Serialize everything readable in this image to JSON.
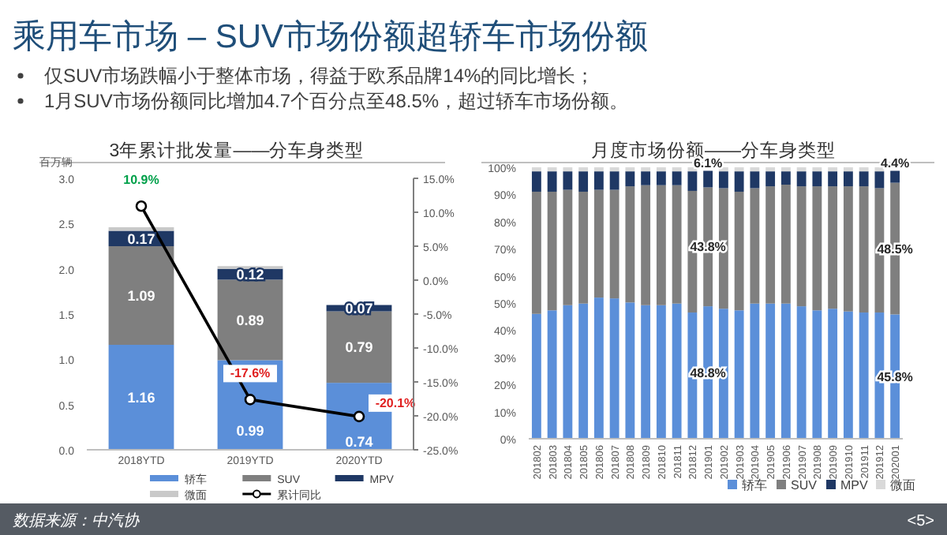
{
  "chart_data": [
    {
      "type": "other",
      "title": "乘用车市场 – SUV市场份额超轿车市场份额",
      "annotations": [
        "仅SUV市场跌幅小于整体市场，得益于欧系品牌14%的同比增长；",
        "1月SUV市场份额同比增加4.7个百分点至48.5%，超过轿车市场份额。",
        "数据来源：中汽协",
        "<5>"
      ]
    },
    {
      "type": "bar",
      "stacked": true,
      "title": "3年累计批发量——分车身类型",
      "ylabel": "百万辆",
      "categories": [
        "2018YTD",
        "2019YTD",
        "2020YTD"
      ],
      "ylim": [
        0,
        3
      ],
      "yticks": [
        {
          "value": 0,
          "label": "0.0"
        },
        {
          "value": 0.5,
          "label": "0.5"
        },
        {
          "value": 1,
          "label": "1.0"
        },
        {
          "value": 1.5,
          "label": "1.5"
        },
        {
          "value": 2,
          "label": "2.0"
        },
        {
          "value": 2.5,
          "label": "2.5"
        },
        {
          "value": 3,
          "label": "3.0"
        }
      ],
      "y2lim": [
        -25,
        15
      ],
      "y2ticks": [
        {
          "value": -25,
          "label": "-25.0%"
        },
        {
          "value": -20,
          "label": "-20.0%"
        },
        {
          "value": -15,
          "label": "-15.0%"
        },
        {
          "value": -10,
          "label": "-10.0%"
        },
        {
          "value": -5,
          "label": "-5.0%"
        },
        {
          "value": 0,
          "label": "0.0%"
        },
        {
          "value": 5,
          "label": "5.0%"
        },
        {
          "value": 10,
          "label": "10.0%"
        },
        {
          "value": 15,
          "label": "15.0%"
        }
      ],
      "legend": "bottom",
      "series": [
        {
          "name": "轿车",
          "color": "#5b8fd9",
          "values": [
            1.16,
            0.99,
            0.74
          ],
          "value_labels": [
            "1.16",
            "0.99",
            "0.74"
          ]
        },
        {
          "name": "SUV",
          "color": "#7f7f7f",
          "values": [
            1.09,
            0.89,
            0.79
          ],
          "value_labels": [
            "1.09",
            "0.89",
            "0.79"
          ]
        },
        {
          "name": "MPV",
          "color": "#1f3864",
          "values": [
            0.17,
            0.12,
            0.07
          ],
          "value_labels": [
            "0.17",
            "0.12",
            "0.07"
          ]
        },
        {
          "name": "微面",
          "color": "#c9c9c9",
          "values": [
            0.04,
            0.03,
            null
          ]
        },
        {
          "name": "累计同比",
          "type": "line",
          "axis": "y2",
          "color": "#000000",
          "marker": "circle",
          "values": [
            10.9,
            -17.6,
            -20.1
          ],
          "value_labels": [
            "10.9%",
            "-17.6%",
            "-20.1%"
          ]
        }
      ]
    },
    {
      "type": "bar",
      "stacked": true,
      "title": "月度市场份额——分车身类型",
      "categories": [
        "201802",
        "201803",
        "201804",
        "201805",
        "201806",
        "201807",
        "201808",
        "201809",
        "201810",
        "201811",
        "201812",
        "201901",
        "201902",
        "201903",
        "201904",
        "201905",
        "201906",
        "201907",
        "201908",
        "201909",
        "201910",
        "201911",
        "201912",
        "202001"
      ],
      "ylim": [
        0,
        100
      ],
      "yticks": [
        {
          "value": 0,
          "label": "0%"
        },
        {
          "value": 10,
          "label": "10%"
        },
        {
          "value": 20,
          "label": "20%"
        },
        {
          "value": 30,
          "label": "30%"
        },
        {
          "value": 40,
          "label": "40%"
        },
        {
          "value": 50,
          "label": "50%"
        },
        {
          "value": 60,
          "label": "60%"
        },
        {
          "value": 70,
          "label": "70%"
        },
        {
          "value": 80,
          "label": "80%"
        },
        {
          "value": 90,
          "label": "90%"
        },
        {
          "value": 100,
          "label": "100%"
        }
      ],
      "legend": "bottom right",
      "series": [
        {
          "name": "轿车",
          "color": "#5b8fd9",
          "values": [
            46,
            47.3,
            49.2,
            49.8,
            52,
            51.7,
            50.2,
            49.2,
            49.2,
            49.8,
            46.5,
            48.8,
            47.9,
            47.3,
            49.8,
            49.8,
            49.8,
            48.8,
            47.3,
            47.9,
            46.9,
            46.5,
            46.5,
            45.8
          ],
          "value_labels": [
            null,
            null,
            null,
            null,
            null,
            null,
            null,
            null,
            null,
            null,
            null,
            "48.8%",
            null,
            null,
            null,
            null,
            null,
            null,
            null,
            null,
            null,
            null,
            null,
            "45.8%"
          ]
        },
        {
          "name": "SUV",
          "color": "#7f7f7f",
          "values": [
            45,
            43.7,
            42.5,
            41.2,
            39.7,
            40,
            42.8,
            44.2,
            44.2,
            43.6,
            44.8,
            43.8,
            44.4,
            43.7,
            42.5,
            43.2,
            43.8,
            44.2,
            45.7,
            45.1,
            46.1,
            46.5,
            45.8,
            48.5
          ],
          "value_labels": [
            null,
            null,
            null,
            null,
            null,
            null,
            null,
            null,
            null,
            null,
            null,
            "43.8%",
            null,
            null,
            null,
            null,
            null,
            null,
            null,
            null,
            null,
            null,
            null,
            "48.5%"
          ]
        },
        {
          "name": "MPV",
          "color": "#1f3864",
          "values": [
            7.5,
            7.5,
            6.8,
            7.5,
            6.8,
            6.8,
            5.5,
            5.1,
            5.1,
            5.1,
            7.2,
            6.1,
            6.2,
            7.5,
            6.2,
            5.5,
            4.9,
            5.5,
            5.5,
            5.5,
            5.5,
            5.5,
            6.2,
            4.4
          ],
          "value_labels": [
            null,
            null,
            null,
            null,
            null,
            null,
            null,
            null,
            null,
            null,
            null,
            "6.1%",
            null,
            null,
            null,
            null,
            null,
            null,
            null,
            null,
            null,
            null,
            null,
            "4.4%"
          ]
        },
        {
          "name": "微面",
          "color": "#d9d9d9",
          "values": [
            1.5,
            1.5,
            1.5,
            1.5,
            1.5,
            1.5,
            1.5,
            1.5,
            1.5,
            1.5,
            1.5,
            null,
            1.5,
            1.5,
            1.5,
            1.5,
            1.5,
            1.5,
            1.5,
            1.5,
            1.5,
            1.5,
            1.5,
            null
          ]
        }
      ]
    }
  ]
}
